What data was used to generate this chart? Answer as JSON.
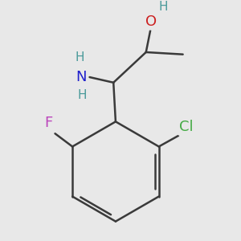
{
  "background_color": "#e8e8e8",
  "bond_color": "#3a3a3a",
  "atom_colors": {
    "F": "#bb44bb",
    "Cl": "#44aa44",
    "N": "#2020cc",
    "O": "#cc2020",
    "H_teal": "#4a9a9a",
    "H": "#3a3a3a",
    "C": "#3a3a3a"
  },
  "bond_width": 1.8,
  "font_size_atoms": 13,
  "font_size_small": 11
}
